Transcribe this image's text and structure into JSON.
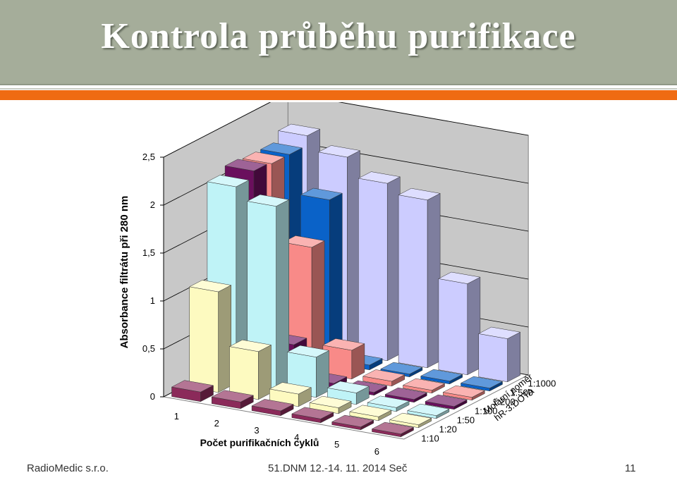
{
  "slide": {
    "title": "Kontrola průběhu purifikace",
    "footer_left": "RadioMedic s.r.o.",
    "footer_center": "51.DNM 12.-14. 11. 2014 Seč",
    "page_number": "11"
  },
  "colors": {
    "title_bar": "#a5ad9a",
    "accent": "#ef6b12"
  },
  "chart_data": {
    "type": "bar3d",
    "ylabel": "Absorbance filtrátu při 280 nm",
    "xlabel": "Počet purifikačních cyklů",
    "zlabel": "Molární poměr hR-3:DOTA",
    "ylim": [
      0,
      2.5
    ],
    "yticks": [
      "0",
      "0,5",
      "1",
      "1,5",
      "2",
      "2,5"
    ],
    "categories": [
      "1",
      "2",
      "3",
      "4",
      "5",
      "6"
    ],
    "series": [
      {
        "name": "1:10",
        "color": "#8b2a5a",
        "values": [
          0.1,
          0.07,
          0.05,
          0.04,
          0.03,
          0.03
        ]
      },
      {
        "name": "1:20",
        "color": "#fdfac0",
        "values": [
          1.05,
          0.5,
          0.13,
          0.06,
          0.04,
          0.03
        ]
      },
      {
        "name": "1:50",
        "color": "#bff3f7",
        "values": [
          2.05,
          1.92,
          0.42,
          0.12,
          0.04,
          0.03
        ]
      },
      {
        "name": "1:100",
        "color": "#6a0f5d",
        "values": [
          2.12,
          0.38,
          0.05,
          0.03,
          0.03,
          0.03
        ]
      },
      {
        "name": "1:200",
        "color": "#f88a88",
        "values": [
          2.1,
          1.3,
          0.3,
          0.05,
          0.03,
          0.03
        ]
      },
      {
        "name": "1:500",
        "color": "#0a62c8",
        "values": [
          2.1,
          1.7,
          0.05,
          0.03,
          0.03,
          0.03
        ]
      },
      {
        "name": "1:1000",
        "color": "#ccccff",
        "values": [
          2.2,
          2.05,
          1.85,
          1.75,
          0.95,
          0.45
        ]
      }
    ]
  }
}
